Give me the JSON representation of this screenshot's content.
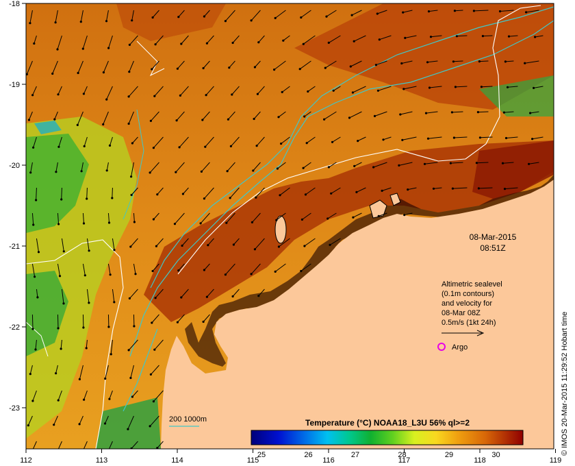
{
  "map": {
    "x_ticks": [
      "112",
      "113",
      "114",
      "115",
      "116",
      "117",
      "118",
      "119"
    ],
    "y_ticks": [
      "-18",
      "-19",
      "-20",
      "-21",
      "-22",
      "-23"
    ],
    "date": "08-Mar-2015",
    "time": "08:51Z",
    "legend_lines": [
      "Altimetric sealevel",
      "(0.1m contours)",
      "and velocity for",
      "08-Mar 08Z",
      "0.5m/s (1kt 24h)"
    ],
    "argo_label": "Argo",
    "depth_label": "200  1000m",
    "colorbar_title": "Temperature (°C) NOAA18_L3U 56% ql>=2",
    "colorbar_ticks": [
      "25",
      "26",
      "27",
      "28",
      "29",
      "30"
    ],
    "credit": "© IMOS 20-Mar-2015 11:29:52 Hobart time",
    "colors": {
      "land": "#fcc89a",
      "contour": "#40c8c8",
      "argo": "#e800e8"
    }
  }
}
